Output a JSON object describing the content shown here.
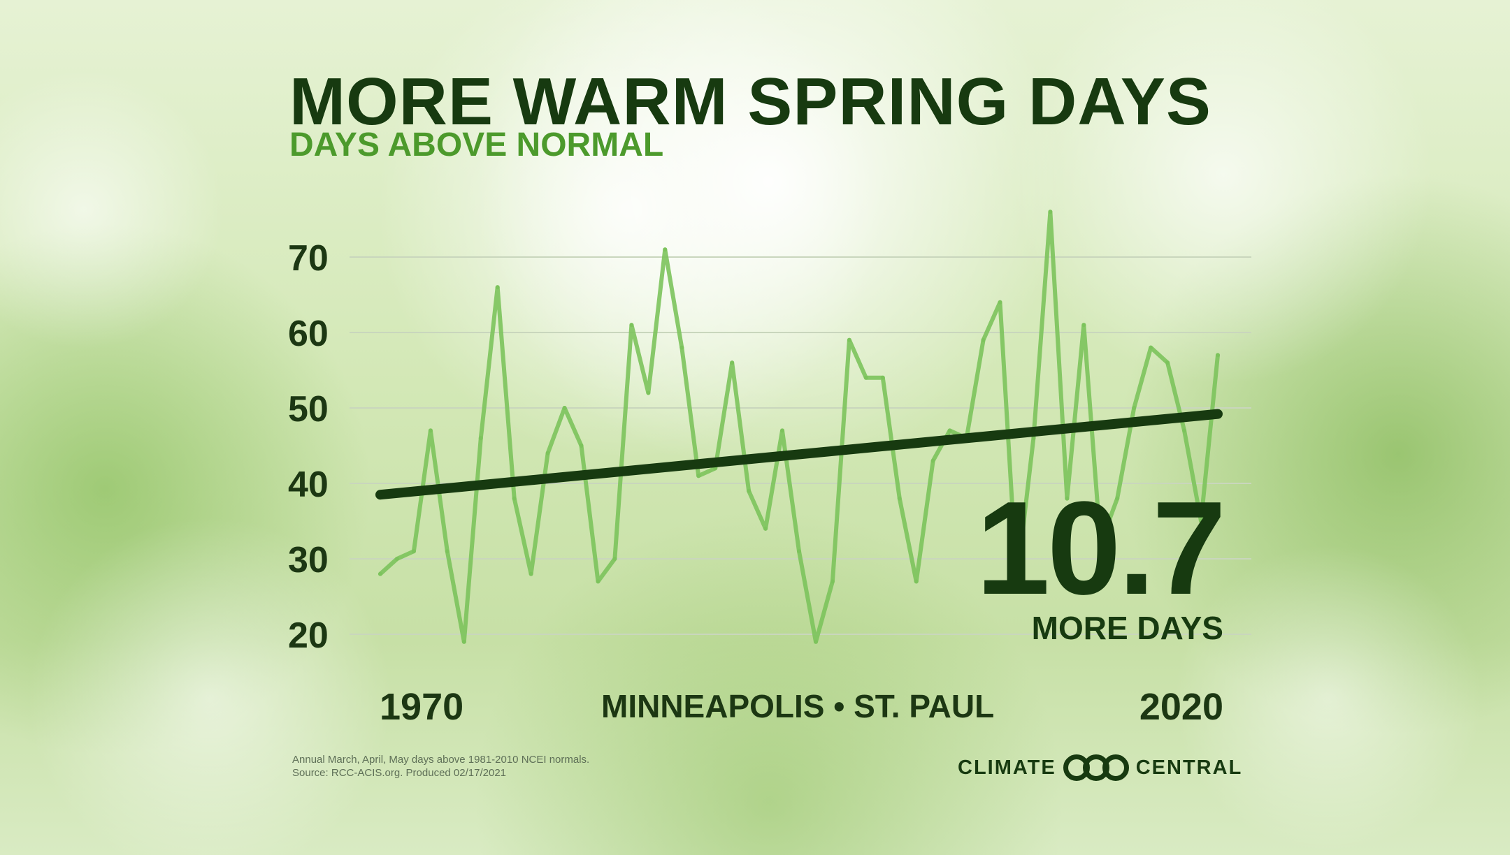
{
  "header": {
    "title": "MORE WARM SPRING DAYS",
    "subtitle": "DAYS ABOVE NORMAL"
  },
  "chart_data": {
    "type": "line",
    "title": "MORE WARM SPRING DAYS",
    "subtitle": "DAYS ABOVE NORMAL",
    "x_tick_labels": [
      "1970",
      "2020"
    ],
    "y_tick_labels": [
      "20",
      "30",
      "40",
      "50",
      "60",
      "70"
    ],
    "ylim": [
      20,
      75
    ],
    "xlim": [
      1970,
      2020
    ],
    "grid": true,
    "series": [
      {
        "type": "line",
        "x": [
          1970,
          1971,
          1972,
          1973,
          1974,
          1975,
          1976,
          1977,
          1978,
          1979,
          1980,
          1981,
          1982,
          1983,
          1984,
          1985,
          1986,
          1987,
          1988,
          1989,
          1990,
          1991,
          1992,
          1993,
          1994,
          1995,
          1996,
          1997,
          1998,
          1999,
          2000,
          2001,
          2002,
          2003,
          2004,
          2005,
          2006,
          2007,
          2008,
          2009,
          2010,
          2011,
          2012,
          2013,
          2014,
          2015,
          2016,
          2017,
          2018,
          2019,
          2020
        ],
        "y": [
          28,
          30,
          31,
          47,
          31,
          19,
          46,
          66,
          38,
          28,
          44,
          50,
          45,
          27,
          30,
          61,
          52,
          71,
          58,
          41,
          42,
          56,
          39,
          34,
          47,
          31,
          19,
          27,
          59,
          54,
          54,
          38,
          27,
          43,
          47,
          46,
          59,
          64,
          27,
          46,
          76,
          38,
          61,
          32,
          38,
          50,
          58,
          56,
          47,
          35,
          57
        ],
        "color": "#7cc35c"
      },
      {
        "type": "trend",
        "x": [
          1970,
          2020
        ],
        "y": [
          38.5,
          49.2
        ],
        "color": "#173a10"
      }
    ],
    "annotation": {
      "value": "10.7",
      "label": "MORE DAYS"
    },
    "location": "MINNEAPOLIS • ST. PAUL"
  },
  "footer": {
    "note_line1": "Annual March, April, May days above 1981-2010 NCEI normals.",
    "note_line2": "Source: RCC-ACIS.org. Produced 02/17/2021",
    "logo_left": "CLIMATE",
    "logo_right": "CENTRAL"
  }
}
